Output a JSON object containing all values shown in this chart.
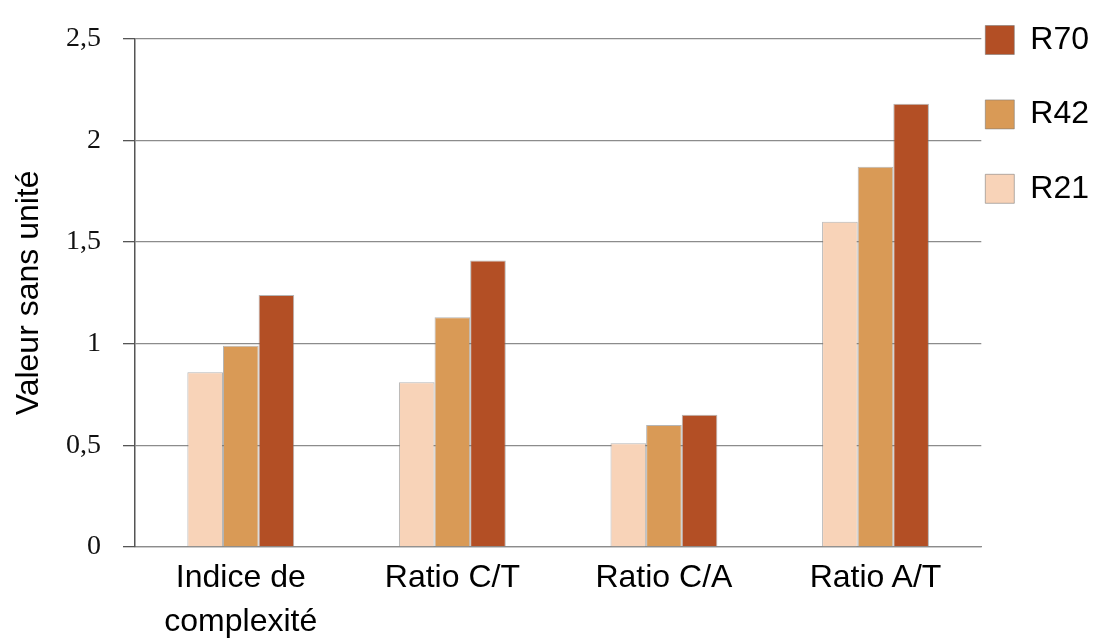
{
  "chart_data": {
    "type": "bar",
    "ylabel": "Valeur sans unité",
    "categories": [
      "Indice de complexité",
      "Ratio C/T",
      "Ratio C/A",
      "Ratio A/T"
    ],
    "series": [
      {
        "name": "R21",
        "color": "#f8d3b8",
        "values": [
          0.86,
          0.81,
          0.51,
          1.6
        ]
      },
      {
        "name": "R42",
        "color": "#d99a56",
        "values": [
          0.99,
          1.13,
          0.6,
          1.87
        ]
      },
      {
        "name": "R70",
        "color": "#b34f25",
        "values": [
          1.24,
          1.41,
          0.65,
          2.18
        ]
      }
    ],
    "ylim": [
      0,
      2.5
    ],
    "yticks": [
      0,
      {
        "value": 0.5,
        "label": "0,5"
      },
      1,
      {
        "value": 1.5,
        "label": "1,5"
      },
      2,
      {
        "value": 2.5,
        "label": "2,5"
      }
    ],
    "grid": "y",
    "legend": "top right"
  }
}
